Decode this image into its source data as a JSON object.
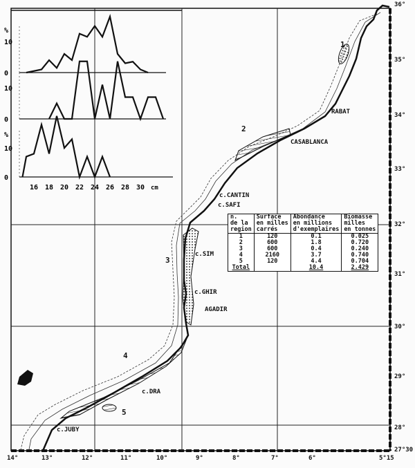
{
  "chart_data": [
    {
      "type": "line",
      "xlabel": "cm",
      "ylabel": "%",
      "x_ticks": [
        "16",
        "18",
        "20",
        "22",
        "24",
        "26",
        "28",
        "30"
      ],
      "y_ticks": [
        "0",
        "10"
      ],
      "x": [
        15,
        16,
        17,
        18,
        19,
        20,
        21,
        22,
        23,
        24,
        25,
        26,
        27,
        28,
        29,
        30,
        31
      ],
      "values": [
        0,
        0.5,
        1,
        4,
        1.5,
        6,
        4,
        12.5,
        11.5,
        15,
        11.5,
        18,
        6,
        3,
        3.5,
        1,
        0
      ]
    },
    {
      "type": "line",
      "y_ticks": [
        "0",
        "10"
      ],
      "x": [
        18,
        19,
        20,
        21,
        22,
        23,
        24,
        25,
        26,
        27,
        28,
        29,
        30,
        31,
        32,
        33
      ],
      "values": [
        0,
        5,
        0,
        0,
        18.5,
        18.5,
        0,
        11,
        0,
        18.5,
        7,
        7,
        0,
        7,
        7,
        0
      ]
    },
    {
      "type": "line",
      "ylabel": "%",
      "y_ticks": [
        "0",
        "10"
      ],
      "x": [
        14.5,
        15,
        16,
        17,
        18,
        19,
        20,
        21,
        22,
        23,
        24,
        25,
        26
      ],
      "values": [
        0,
        7,
        8,
        18,
        8,
        21,
        10,
        13,
        0,
        7,
        0,
        7,
        0
      ]
    }
  ],
  "map": {
    "longitudes": [
      "14°",
      "13°",
      "12°",
      "11°",
      "10°",
      "9°",
      "8°",
      "7°",
      "6°",
      "5°15"
    ],
    "latitudes": [
      "36°",
      "35°",
      "34°",
      "33°",
      "32°",
      "31°",
      "30°",
      "29°",
      "28°",
      "27°30"
    ],
    "places": [
      "RABAT",
      "CASABLANCA",
      "c.CANTIN",
      "c.SAFI",
      "c.SIM",
      "c.GHIR",
      "AGADIR",
      "c.DRA",
      "c.JUBY"
    ],
    "regions": [
      "1",
      "2",
      "3",
      "4",
      "5"
    ]
  },
  "table": {
    "headers": [
      "n.\nde la\nregion",
      "Surface\nen milles\ncarrés",
      "Abondance\nen millions\nd'exemplaires",
      "Biomasse\nmilles\nen tonnes"
    ],
    "rows": [
      [
        "1",
        "120",
        "0.1",
        "0.025"
      ],
      [
        "2",
        "600",
        "1.8",
        "0.720"
      ],
      [
        "3",
        "600",
        "0.4",
        "0.240"
      ],
      [
        "4",
        "2160",
        "3.7",
        "0.740"
      ],
      [
        "5",
        "120",
        "4.4",
        "0.704"
      ]
    ],
    "total": [
      "Total",
      "",
      "10.4",
      "2.429"
    ]
  }
}
